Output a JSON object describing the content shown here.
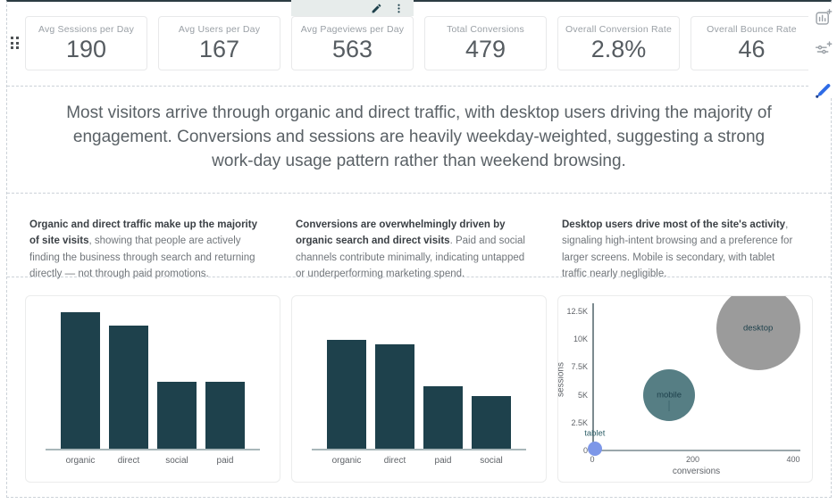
{
  "colors": {
    "bar": "#1e414c",
    "desktop_bubble": "#9b9b9b",
    "mobile_bubble": "#567e84",
    "tablet_bubble": "#7d97e8",
    "toolbar_bg": "#e7eceb",
    "edit_blue": "#2e6be6",
    "selection_line": "#2c3c43"
  },
  "icons": {
    "toolbar": [
      "pencil-icon",
      "kebab-menu-icon"
    ],
    "rail": [
      "add-chart-icon",
      "add-control-icon",
      "edit-style-icon"
    ],
    "handle": "drag-handle-icon"
  },
  "kpi_cards": [
    {
      "label": "Avg Sessions per Day",
      "value": "190"
    },
    {
      "label": "Avg Users per Day",
      "value": "167"
    },
    {
      "label": "Avg Pageviews per Day",
      "value": "563"
    },
    {
      "label": "Total Conversions",
      "value": "479"
    },
    {
      "label": "Overall Conversion Rate",
      "value": "2.8%"
    },
    {
      "label": "Overall Bounce Rate",
      "value": "46"
    }
  ],
  "headline": {
    "text": "Most visitors arrive through organic and direct traffic, with desktop users driving the majority of engagement. Conversions and sessions are heavily weekday-weighted, suggesting a strong work-day usage pattern rather than weekend browsing."
  },
  "insights": [
    {
      "lead": "Organic and direct traffic make up the majority of site visits",
      "rest": ", showing that people are actively finding the business through search and returning directly — not through paid promotions."
    },
    {
      "lead": "Conversions are overwhelmingly driven by organic search and direct visits",
      "rest": ". Paid and social channels contribute minimally, indicating untapped or underperforming marketing spend."
    },
    {
      "lead": "Desktop users drive most of the site's activity",
      "rest": ", signaling high-intent browsing and a preference for larger screens. Mobile is secondary, with tablet traffic nearly negligible."
    }
  ],
  "chart_data": [
    {
      "type": "bar",
      "title": "",
      "categories": [
        "organic",
        "direct",
        "social",
        "paid"
      ],
      "values": [
        1.0,
        0.9,
        0.49,
        0.49
      ],
      "ylim": [
        0,
        1
      ],
      "max_height_fraction": 1.0,
      "bar_color": "#1e414c",
      "grid": false,
      "legend": "none"
    },
    {
      "type": "bar",
      "title": "",
      "categories": [
        "organic",
        "direct",
        "paid",
        "social"
      ],
      "values": [
        1.0,
        0.96,
        0.57,
        0.48
      ],
      "ylim": [
        0,
        1.25
      ],
      "max_height_fraction": 0.8,
      "bar_color": "#1e414c",
      "grid": false,
      "legend": "none"
    },
    {
      "type": "scatter",
      "title": "",
      "xlabel": "conversions",
      "ylabel": "sessions",
      "xlim": [
        0,
        430
      ],
      "ylim": [
        0,
        13500
      ],
      "grid": false,
      "legend": "none",
      "x_ticks": {
        "values": [
          0,
          200,
          400
        ],
        "labels": [
          "0",
          "200",
          "400"
        ]
      },
      "y_ticks": {
        "values": [
          0,
          2500,
          5000,
          7500,
          10000,
          12500
        ],
        "labels": [
          "0",
          "2.5K",
          "5K",
          "7.5K",
          "10K",
          "12.5K"
        ]
      },
      "points": [
        {
          "label": "desktop",
          "x": 330,
          "y": 11000,
          "r": 47,
          "color": "#9b9b9b",
          "label_pos": "center"
        },
        {
          "label": "mobile",
          "x": 153,
          "y": 5000,
          "r": 29,
          "color": "#567e84",
          "label_pos": "center"
        },
        {
          "label": "tablet",
          "x": 5,
          "y": 150,
          "r": 8,
          "color": "#7d97e8",
          "label_pos": "above"
        }
      ]
    }
  ]
}
